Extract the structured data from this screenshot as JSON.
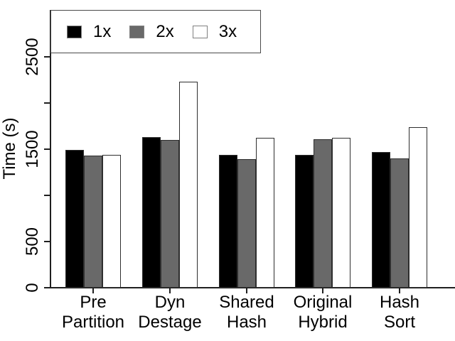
{
  "chart_data": {
    "type": "bar",
    "title": "",
    "xlabel": "",
    "ylabel": "Time (s)",
    "categories": [
      [
        "Pre",
        "Partition"
      ],
      [
        "Dyn",
        "Destage"
      ],
      [
        "Shared",
        "Hash"
      ],
      [
        "Original",
        "Hybrid"
      ],
      [
        "Hash",
        "Sort"
      ]
    ],
    "series": [
      {
        "name": "1x",
        "fill": "#000000",
        "values": [
          1490,
          1630,
          1440,
          1440,
          1470
        ]
      },
      {
        "name": "2x",
        "fill": "#696969",
        "values": [
          1430,
          1600,
          1390,
          1610,
          1400
        ]
      },
      {
        "name": "3x",
        "fill": "#ffffff",
        "values": [
          1440,
          2230,
          1620,
          1620,
          1740
        ]
      }
    ],
    "y_ticks": [
      {
        "value": 0,
        "label": "0"
      },
      {
        "value": 500,
        "label": "500"
      },
      {
        "value": 1000,
        "label": ""
      },
      {
        "value": 1500,
        "label": "1500"
      },
      {
        "value": 2000,
        "label": ""
      },
      {
        "value": 2500,
        "label": "2500"
      }
    ],
    "ylim": [
      0,
      3000
    ],
    "grid": false,
    "legend_position": "top-left"
  },
  "colors": {
    "background": "#ffffff",
    "axis": "#1f1f1f",
    "text": "#000000",
    "bar_border": "#2e2e2e",
    "swatch_border": "#808080",
    "series_fills": [
      "#000000",
      "#696969",
      "#ffffff"
    ]
  }
}
